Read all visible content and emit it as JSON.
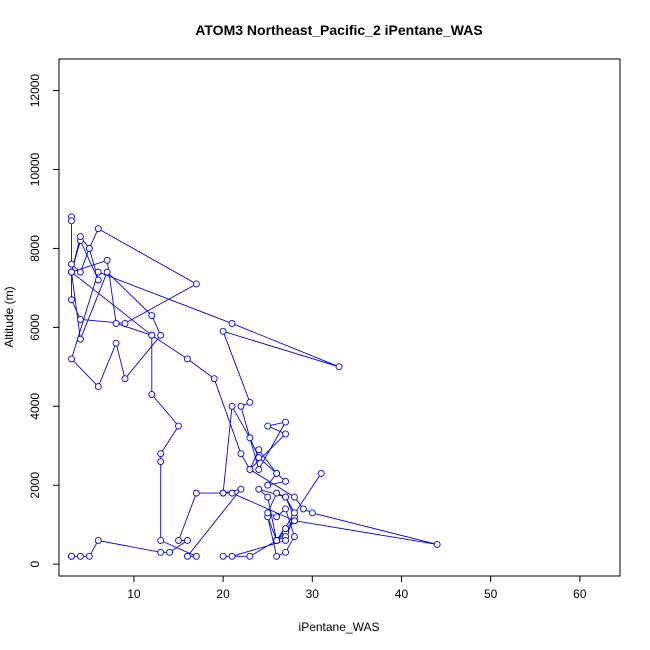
{
  "chart_data": {
    "type": "line",
    "title": "ATOM3 Northeast_Pacific_2 iPentane_WAS",
    "xlabel": "iPentane_WAS",
    "ylabel": "Altitude (m)",
    "xlim": [
      1.6,
      64.5
    ],
    "ylim": [
      -300,
      12800
    ],
    "x_ticks": [
      10,
      20,
      30,
      40,
      50,
      60
    ],
    "y_ticks": [
      0,
      2000,
      4000,
      6000,
      8000,
      10000,
      12000
    ],
    "grid": false,
    "line_color": "#0000ff",
    "marker": "open-circle",
    "series": [
      {
        "x": [
          3,
          3,
          3,
          4,
          5,
          6,
          17,
          9,
          4,
          3,
          3,
          7,
          8,
          12,
          3,
          4,
          6,
          5,
          4,
          3,
          4,
          7,
          12,
          13,
          9,
          8,
          6,
          3,
          6,
          21,
          33,
          20,
          23,
          22,
          24,
          27,
          25,
          27,
          23,
          22,
          19,
          16,
          12,
          12,
          15,
          13,
          13,
          13,
          17,
          16,
          22,
          20,
          21,
          23,
          24,
          26,
          27,
          25,
          26,
          24,
          23,
          28,
          29,
          30,
          44,
          28,
          27,
          26,
          25,
          24,
          27,
          28,
          27,
          26,
          31,
          26,
          25,
          26,
          27,
          28,
          27,
          26,
          25,
          26,
          27,
          28,
          27,
          21,
          20,
          23,
          26,
          27,
          28,
          21,
          20,
          17,
          15,
          16,
          14,
          13,
          6,
          5,
          4,
          3,
          3
        ],
        "y": [
          8800,
          8700,
          7600,
          7400,
          8000,
          8500,
          7100,
          6100,
          6200,
          6700,
          7400,
          7700,
          6100,
          5800,
          7400,
          8200,
          7200,
          8000,
          8300,
          7400,
          5700,
          7400,
          6300,
          5800,
          4700,
          5600,
          4500,
          5200,
          7400,
          6100,
          5000,
          5900,
          4100,
          4000,
          2400,
          3600,
          3500,
          3300,
          2400,
          2800,
          4700,
          5200,
          5800,
          4300,
          3500,
          2800,
          2600,
          600,
          200,
          200,
          1900,
          1800,
          4000,
          3200,
          2700,
          2300,
          2100,
          2000,
          2300,
          2900,
          2400,
          1700,
          1400,
          1300,
          500,
          1100,
          800,
          600,
          1700,
          1900,
          1700,
          1200,
          700,
          600,
          2300,
          600,
          1200,
          200,
          300,
          700,
          1400,
          1200,
          1300,
          1800,
          1700,
          1300,
          600,
          200,
          200,
          200,
          600,
          900,
          1100,
          1800,
          1800,
          1800,
          600,
          600,
          300,
          300,
          600,
          200,
          200,
          200,
          200
        ]
      }
    ]
  }
}
